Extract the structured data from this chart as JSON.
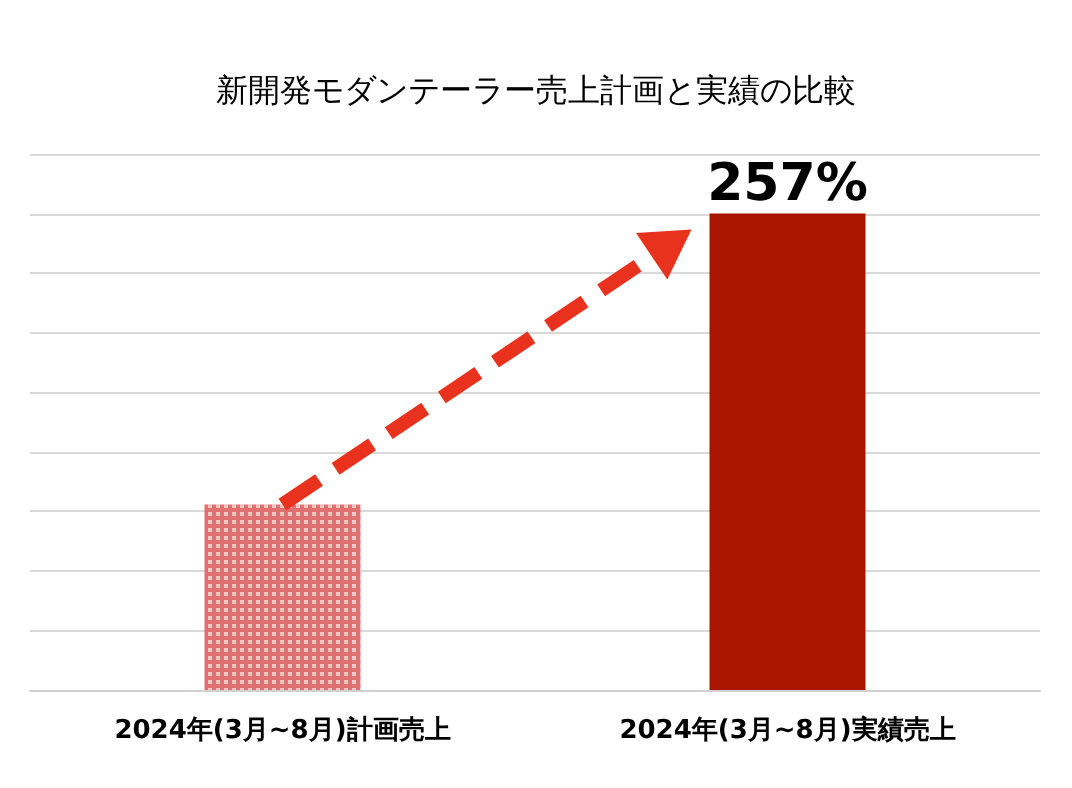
{
  "chart_data": {
    "type": "bar",
    "title": "新開発モダンテーラー売上計画と実績の比較",
    "categories": [
      "2024年(3月~8月)計画売上",
      "2024年(3月~8月)実績売上"
    ],
    "values": [
      100,
      257
    ],
    "colors": [
      "#e07070",
      "#aa1500"
    ],
    "value_labels": [
      null,
      "257%"
    ],
    "tick_labels": "x",
    "grid": "y"
  }
}
